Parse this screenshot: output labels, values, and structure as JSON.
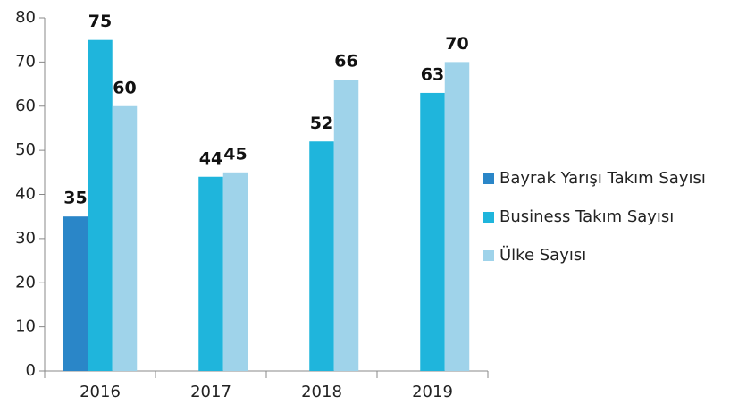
{
  "chart_data": {
    "type": "bar",
    "categories": [
      "2016",
      "2017",
      "2018",
      "2019"
    ],
    "series": [
      {
        "name": "Bayrak Yarışı Takım Sayısı",
        "color": "#2a86c8",
        "values": [
          35,
          null,
          null,
          null
        ]
      },
      {
        "name": "Business Takım Sayısı",
        "color": "#1fb5dc",
        "values": [
          75,
          44,
          52,
          63
        ]
      },
      {
        "name": "Ülke Sayısı",
        "color": "#9fd3ea",
        "values": [
          60,
          45,
          66,
          70
        ]
      }
    ],
    "ylim": [
      0,
      80
    ],
    "yticks": [
      0,
      10,
      20,
      30,
      40,
      50,
      60,
      70,
      80
    ],
    "legend": "right"
  }
}
